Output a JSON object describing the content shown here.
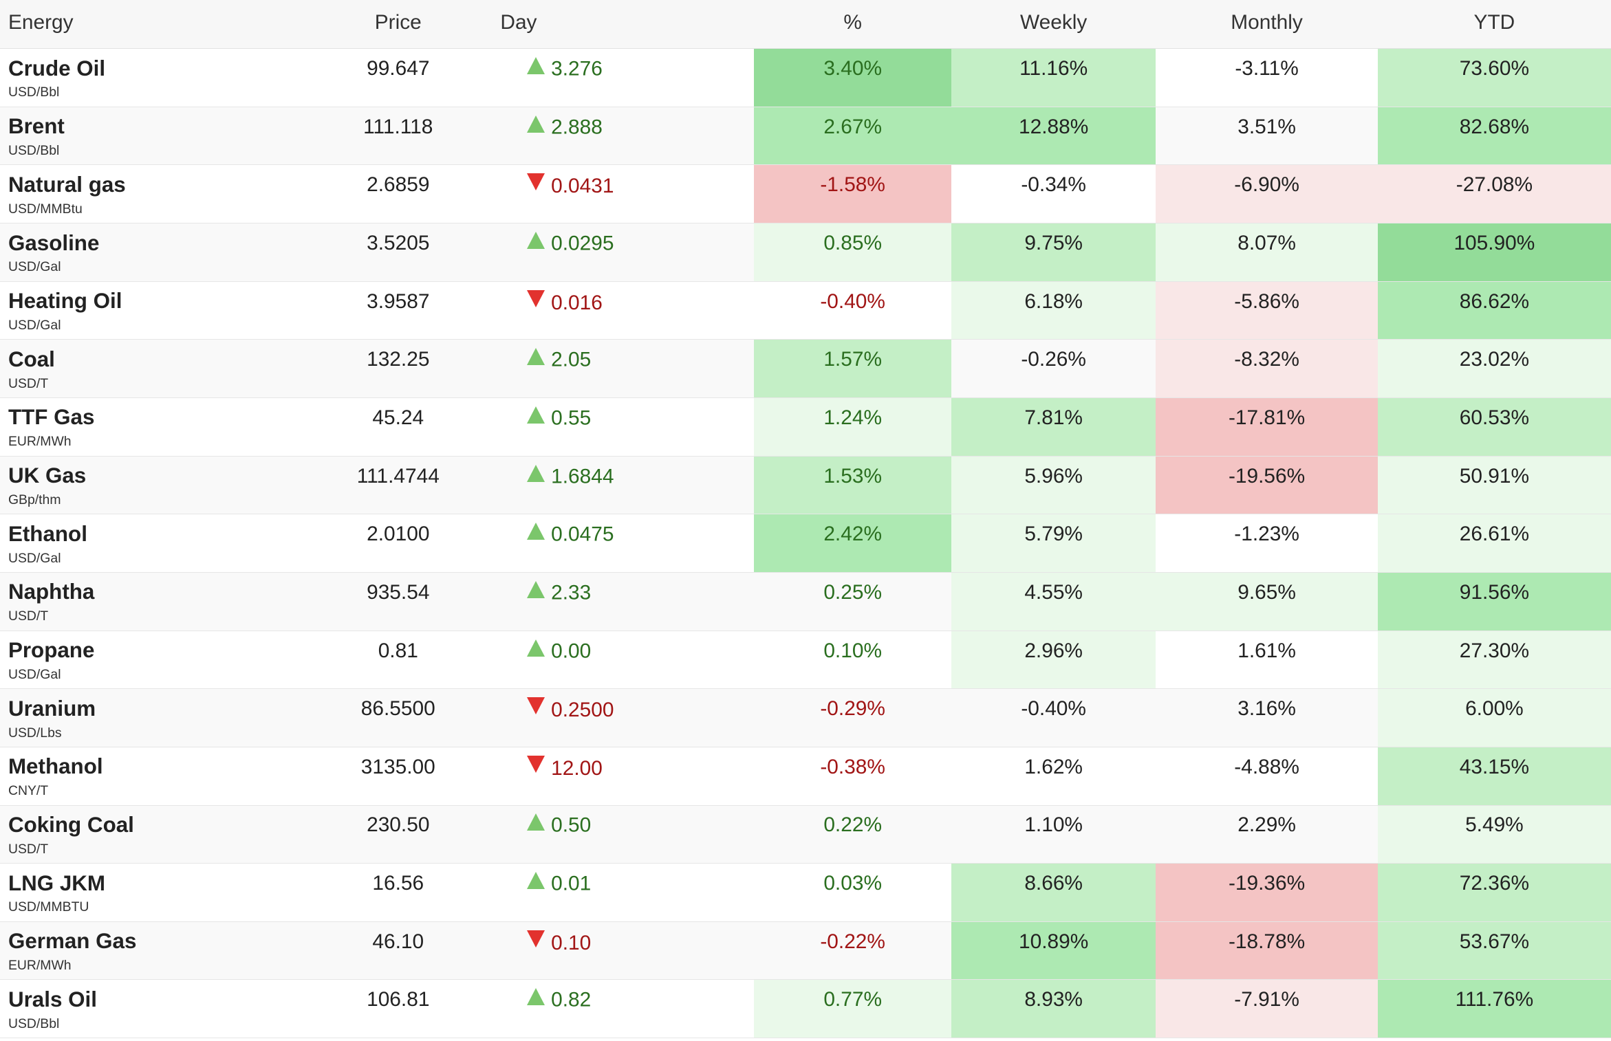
{
  "columns": {
    "name": "Energy",
    "price": "Price",
    "day": "Day",
    "pct": "%",
    "weekly": "Weekly",
    "monthly": "Monthly",
    "ytd": "YTD"
  },
  "rows": [
    {
      "name": "Crude Oil",
      "unit": "USD/Bbl",
      "price": "99.647",
      "day": "3.276",
      "dir": "up",
      "pct": "3.40%",
      "weekly": "11.16%",
      "monthly": "-3.11%",
      "ytd": "73.60%"
    },
    {
      "name": "Brent",
      "unit": "USD/Bbl",
      "price": "111.118",
      "day": "2.888",
      "dir": "up",
      "pct": "2.67%",
      "weekly": "12.88%",
      "monthly": "3.51%",
      "ytd": "82.68%"
    },
    {
      "name": "Natural gas",
      "unit": "USD/MMBtu",
      "price": "2.6859",
      "day": "0.0431",
      "dir": "down",
      "pct": "-1.58%",
      "weekly": "-0.34%",
      "monthly": "-6.90%",
      "ytd": "-27.08%"
    },
    {
      "name": "Gasoline",
      "unit": "USD/Gal",
      "price": "3.5205",
      "day": "0.0295",
      "dir": "up",
      "pct": "0.85%",
      "weekly": "9.75%",
      "monthly": "8.07%",
      "ytd": "105.90%"
    },
    {
      "name": "Heating Oil",
      "unit": "USD/Gal",
      "price": "3.9587",
      "day": "0.016",
      "dir": "down",
      "pct": "-0.40%",
      "weekly": "6.18%",
      "monthly": "-5.86%",
      "ytd": "86.62%"
    },
    {
      "name": "Coal",
      "unit": "USD/T",
      "price": "132.25",
      "day": "2.05",
      "dir": "up",
      "pct": "1.57%",
      "weekly": "-0.26%",
      "monthly": "-8.32%",
      "ytd": "23.02%"
    },
    {
      "name": "TTF Gas",
      "unit": "EUR/MWh",
      "price": "45.24",
      "day": "0.55",
      "dir": "up",
      "pct": "1.24%",
      "weekly": "7.81%",
      "monthly": "-17.81%",
      "ytd": "60.53%"
    },
    {
      "name": "UK Gas",
      "unit": "GBp/thm",
      "price": "111.4744",
      "day": "1.6844",
      "dir": "up",
      "pct": "1.53%",
      "weekly": "5.96%",
      "monthly": "-19.56%",
      "ytd": "50.91%"
    },
    {
      "name": "Ethanol",
      "unit": "USD/Gal",
      "price": "2.0100",
      "day": "0.0475",
      "dir": "up",
      "pct": "2.42%",
      "weekly": "5.79%",
      "monthly": "-1.23%",
      "ytd": "26.61%"
    },
    {
      "name": "Naphtha",
      "unit": "USD/T",
      "price": "935.54",
      "day": "2.33",
      "dir": "up",
      "pct": "0.25%",
      "weekly": "4.55%",
      "monthly": "9.65%",
      "ytd": "91.56%"
    },
    {
      "name": "Propane",
      "unit": "USD/Gal",
      "price": "0.81",
      "day": "0.00",
      "dir": "up",
      "pct": "0.10%",
      "weekly": "2.96%",
      "monthly": "1.61%",
      "ytd": "27.30%"
    },
    {
      "name": "Uranium",
      "unit": "USD/Lbs",
      "price": "86.5500",
      "day": "0.2500",
      "dir": "down",
      "pct": "-0.29%",
      "weekly": "-0.40%",
      "monthly": "3.16%",
      "ytd": "6.00%"
    },
    {
      "name": "Methanol",
      "unit": "CNY/T",
      "price": "3135.00",
      "day": "12.00",
      "dir": "down",
      "pct": "-0.38%",
      "weekly": "1.62%",
      "monthly": "-4.88%",
      "ytd": "43.15%"
    },
    {
      "name": "Coking Coal",
      "unit": "USD/T",
      "price": "230.50",
      "day": "0.50",
      "dir": "up",
      "pct": "0.22%",
      "weekly": "1.10%",
      "monthly": "2.29%",
      "ytd": "5.49%"
    },
    {
      "name": "LNG JKM",
      "unit": "USD/MMBTU",
      "price": "16.56",
      "day": "0.01",
      "dir": "up",
      "pct": "0.03%",
      "weekly": "8.66%",
      "monthly": "-19.36%",
      "ytd": "72.36%"
    },
    {
      "name": "German Gas",
      "unit": "EUR/MWh",
      "price": "46.10",
      "day": "0.10",
      "dir": "down",
      "pct": "-0.22%",
      "weekly": "10.89%",
      "monthly": "-18.78%",
      "ytd": "53.67%"
    },
    {
      "name": "Urals Oil",
      "unit": "USD/Bbl",
      "price": "106.81",
      "day": "0.82",
      "dir": "up",
      "pct": "0.77%",
      "weekly": "8.93%",
      "monthly": "-7.91%",
      "ytd": "111.76%"
    }
  ],
  "shading": [
    {
      "pct": "g3",
      "weekly": "g1",
      "monthly": "",
      "ytd": "g1"
    },
    {
      "pct": "g2",
      "weekly": "g2",
      "monthly": "",
      "ytd": "g2"
    },
    {
      "pct": "r2",
      "weekly": "",
      "monthly": "r1",
      "ytd": "r1"
    },
    {
      "pct": "g0",
      "weekly": "g1",
      "monthly": "g0",
      "ytd": "g3"
    },
    {
      "pct": "",
      "weekly": "g0",
      "monthly": "r1",
      "ytd": "g2"
    },
    {
      "pct": "g1",
      "weekly": "",
      "monthly": "r1",
      "ytd": "g0"
    },
    {
      "pct": "g0",
      "weekly": "g1",
      "monthly": "r2",
      "ytd": "g1"
    },
    {
      "pct": "g1",
      "weekly": "g0",
      "monthly": "r2",
      "ytd": "g0"
    },
    {
      "pct": "g2",
      "weekly": "g0",
      "monthly": "",
      "ytd": "g0"
    },
    {
      "pct": "",
      "weekly": "g0",
      "monthly": "g0",
      "ytd": "g2"
    },
    {
      "pct": "",
      "weekly": "g0",
      "monthly": "",
      "ytd": "g0"
    },
    {
      "pct": "",
      "weekly": "",
      "monthly": "",
      "ytd": "g0"
    },
    {
      "pct": "",
      "weekly": "",
      "monthly": "",
      "ytd": "g1"
    },
    {
      "pct": "",
      "weekly": "",
      "monthly": "",
      "ytd": "g0"
    },
    {
      "pct": "",
      "weekly": "g1",
      "monthly": "r2",
      "ytd": "g1"
    },
    {
      "pct": "",
      "weekly": "g2",
      "monthly": "r2",
      "ytd": "g1"
    },
    {
      "pct": "g0",
      "weekly": "g1",
      "monthly": "r1",
      "ytd": "g2"
    }
  ],
  "colors": {
    "up_text": "#2a6e1f",
    "down_text": "#a11515",
    "up_triangle": "#7bc66b",
    "down_triangle": "#e2322e"
  }
}
